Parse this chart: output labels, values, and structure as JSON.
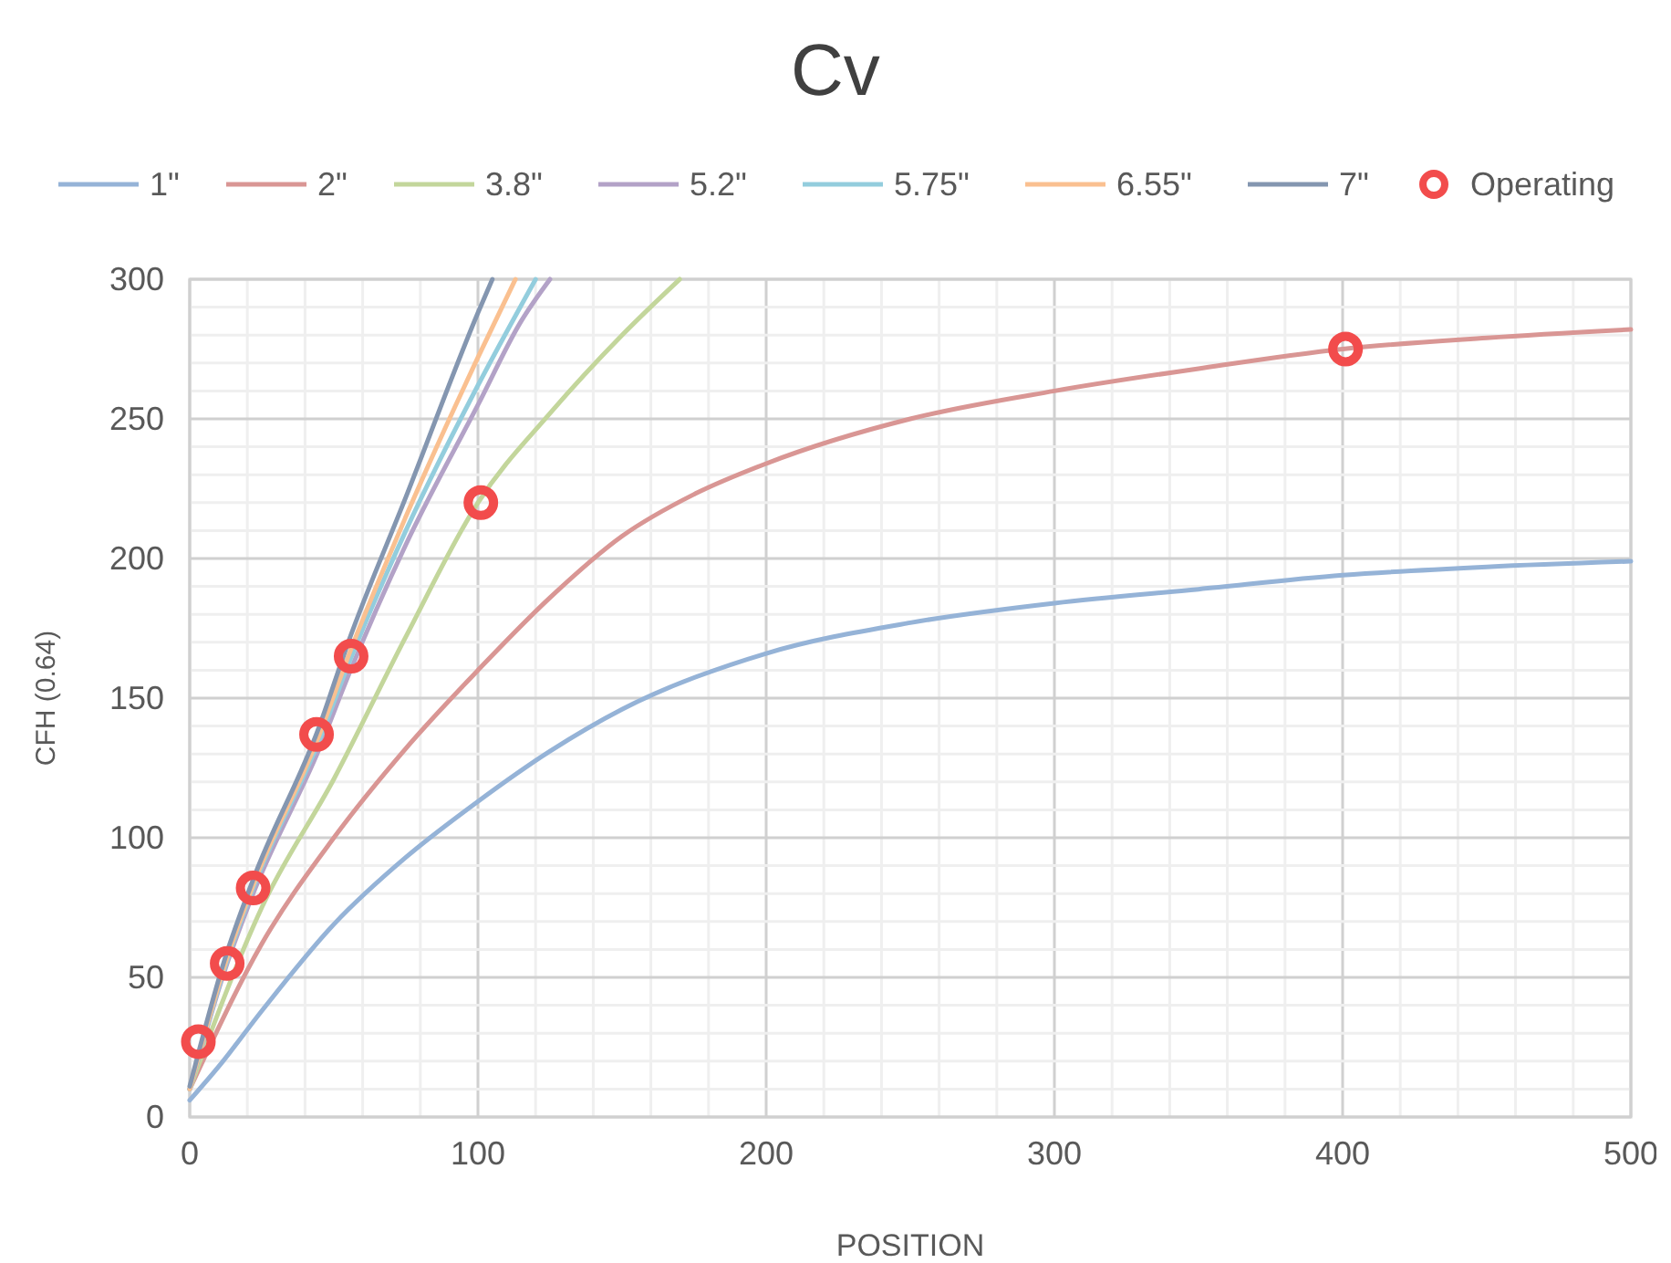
{
  "chart_data": {
    "type": "line",
    "title": "Cv",
    "xlabel": "POSITION",
    "ylabel": "CFH (0.64)",
    "xlim": [
      0,
      500
    ],
    "ylim": [
      0,
      300
    ],
    "xticks": [
      0,
      {
        "value": 20,
        "label": null
      },
      {
        "value": 40,
        "label": null
      },
      {
        "value": 60,
        "label": null
      },
      {
        "value": 80,
        "label": null
      },
      100,
      {
        "value": 120,
        "label": null
      },
      {
        "value": 140,
        "label": null
      },
      {
        "value": 160,
        "label": null
      },
      {
        "value": 180,
        "label": null
      },
      200,
      {
        "value": 220,
        "label": null
      },
      {
        "value": 240,
        "label": null
      },
      {
        "value": 260,
        "label": null
      },
      {
        "value": 280,
        "label": null
      },
      300,
      {
        "value": 320,
        "label": null
      },
      {
        "value": 340,
        "label": null
      },
      {
        "value": 360,
        "label": null
      },
      {
        "value": 380,
        "label": null
      },
      400,
      {
        "value": 420,
        "label": null
      },
      {
        "value": 440,
        "label": null
      },
      {
        "value": 460,
        "label": null
      },
      {
        "value": 480,
        "label": null
      },
      500
    ],
    "yticks": [
      0,
      {
        "value": 10,
        "label": null
      },
      {
        "value": 20,
        "label": null
      },
      {
        "value": 30,
        "label": null
      },
      {
        "value": 40,
        "label": null
      },
      50,
      {
        "value": 60,
        "label": null
      },
      {
        "value": 70,
        "label": null
      },
      {
        "value": 80,
        "label": null
      },
      {
        "value": 90,
        "label": null
      },
      100,
      {
        "value": 110,
        "label": null
      },
      {
        "value": 120,
        "label": null
      },
      {
        "value": 130,
        "label": null
      },
      {
        "value": 140,
        "label": null
      },
      150,
      {
        "value": 160,
        "label": null
      },
      {
        "value": 170,
        "label": null
      },
      {
        "value": 180,
        "label": null
      },
      {
        "value": 190,
        "label": null
      },
      200,
      {
        "value": 210,
        "label": null
      },
      {
        "value": 220,
        "label": null
      },
      {
        "value": 230,
        "label": null
      },
      {
        "value": 240,
        "label": null
      },
      250,
      {
        "value": 260,
        "label": null
      },
      {
        "value": 270,
        "label": null
      },
      {
        "value": 280,
        "label": null
      },
      {
        "value": 290,
        "label": null
      },
      300
    ],
    "grid": true,
    "legend": "top",
    "marker": "none",
    "line_style": "solid",
    "series": [
      {
        "name": "1\"",
        "color": "#95b3d7",
        "x": [
          0,
          10,
          25,
          50,
          75,
          100,
          125,
          150,
          200,
          250,
          300,
          350,
          400,
          450,
          500
        ],
        "values": [
          6,
          18,
          38,
          69,
          93,
          113,
          131,
          146,
          166,
          177,
          184,
          189,
          194,
          197,
          199
        ]
      },
      {
        "name": "2\"",
        "color": "#d99694",
        "x": [
          0,
          25,
          50,
          75,
          100,
          125,
          150,
          175,
          200,
          250,
          300,
          350,
          400,
          450,
          500
        ],
        "values": [
          10,
          62,
          100,
          132,
          160,
          186,
          208,
          223,
          234,
          250,
          260,
          268,
          275,
          279,
          282
        ]
      },
      {
        "name": "3.8\"",
        "color": "#c3d69b",
        "x": [
          0,
          25,
          50,
          75,
          100,
          125,
          150,
          170
        ],
        "values": [
          10,
          75,
          121,
          172,
          220,
          252,
          280,
          300
        ]
      },
      {
        "name": "5.2\"",
        "color": "#b3a2c7",
        "x": [
          0,
          12,
          22,
          45,
          55,
          75,
          100,
          115,
          125
        ],
        "values": [
          10,
          52,
          80,
          132,
          158,
          205,
          255,
          285,
          300
        ]
      },
      {
        "name": "5.75\"",
        "color": "#93cddd",
        "x": [
          0,
          12,
          22,
          45,
          55,
          75,
          100,
          120
        ],
        "values": [
          10,
          53,
          82,
          135,
          162,
          210,
          262,
          300
        ]
      },
      {
        "name": "6.55\"",
        "color": "#fac090",
        "x": [
          0,
          12,
          22,
          45,
          55,
          75,
          100,
          113
        ],
        "values": [
          10,
          54,
          83,
          137,
          165,
          215,
          272,
          300
        ]
      },
      {
        "name": "7\"",
        "color": "#8496b0",
        "x": [
          0,
          12,
          22,
          45,
          55,
          75,
          100,
          105
        ],
        "values": [
          11,
          56,
          85,
          140,
          170,
          222,
          288,
          300
        ]
      },
      {
        "name": "Operating",
        "type": "scatter",
        "marker": "circle",
        "color": "#f24c4c",
        "x": [
          3,
          13,
          22,
          44,
          56,
          101,
          401
        ],
        "values": [
          27,
          55,
          82,
          137,
          165,
          220,
          275
        ]
      }
    ]
  }
}
